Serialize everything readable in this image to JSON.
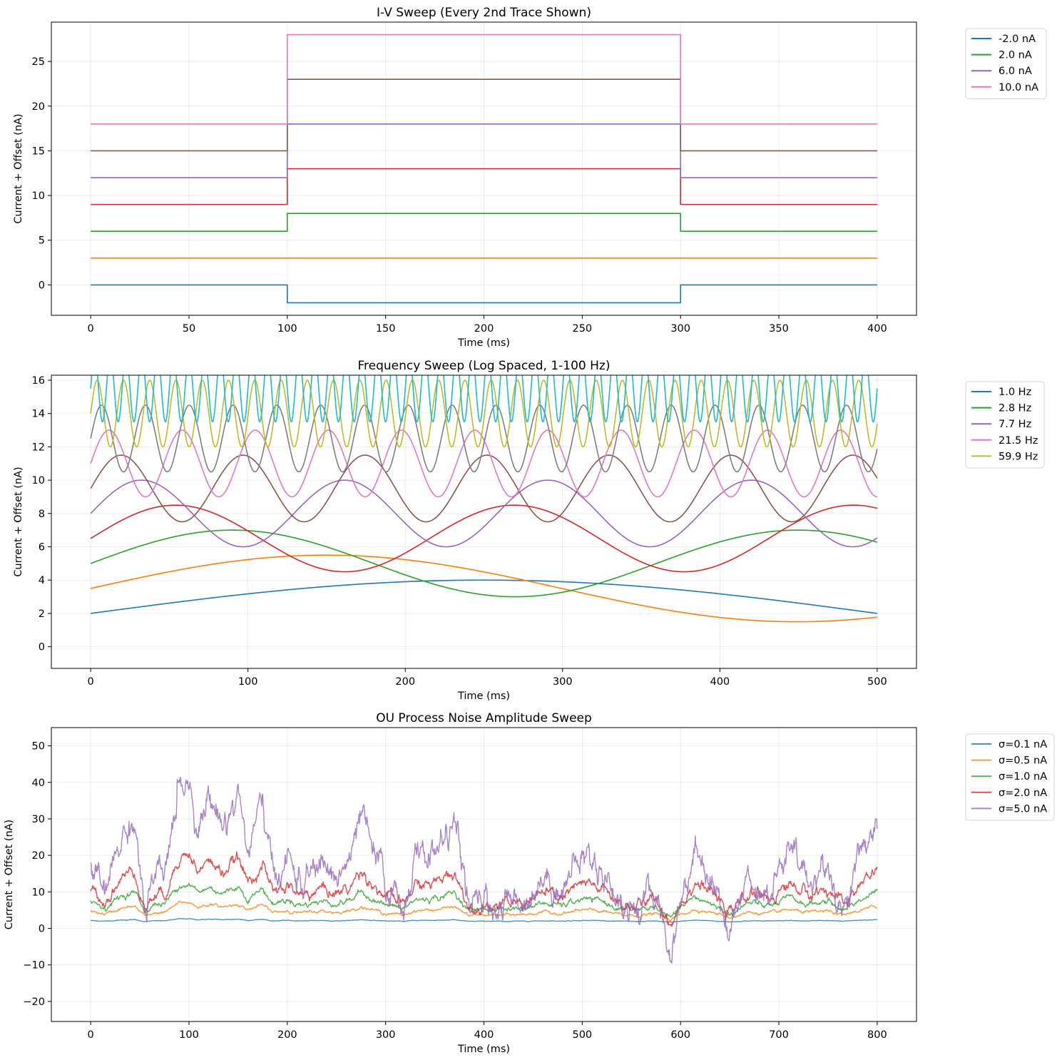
{
  "chart_data": [
    {
      "type": "line",
      "title": "I-V Sweep (Every 2nd Trace Shown)",
      "xlabel": "Time (ms)",
      "ylabel": "Current + Offset (nA)",
      "xlim": [
        -20,
        420
      ],
      "ylim": [
        -3.4,
        29.4
      ],
      "xticks": [
        0,
        50,
        100,
        150,
        200,
        250,
        300,
        350,
        400
      ],
      "yticks": [
        0,
        5,
        10,
        15,
        20,
        25
      ],
      "grid": true,
      "legend_position": "outside-top-right",
      "step": {
        "on": 100,
        "off": 300,
        "end": 400
      },
      "series": [
        {
          "name": "-2.0 nA",
          "baseline": 0,
          "during": -2,
          "color": "#1f77b4"
        },
        {
          "baseline": 3,
          "during": 3,
          "color": "#ff7f0e"
        },
        {
          "name": "2.0 nA",
          "baseline": 6,
          "during": 8,
          "color": "#2ca02c"
        },
        {
          "baseline": 9,
          "during": 13,
          "color": "#d62728"
        },
        {
          "name": "6.0 nA",
          "baseline": 12,
          "during": 18,
          "color": "#9467bd"
        },
        {
          "baseline": 15,
          "during": 23,
          "color": "#8c564b"
        },
        {
          "name": "10.0 nA",
          "baseline": 18,
          "during": 28,
          "color": "#e377c2"
        }
      ]
    },
    {
      "type": "line",
      "title": "Frequency Sweep (Log Spaced, 1-100 Hz)",
      "xlabel": "Time (ms)",
      "ylabel": "Current + Offset (nA)",
      "xlim": [
        -25,
        525
      ],
      "ylim": [
        -1.3,
        16.3
      ],
      "xticks": [
        0,
        100,
        200,
        300,
        400,
        500
      ],
      "yticks": [
        0,
        2,
        4,
        6,
        8,
        10,
        12,
        14,
        16
      ],
      "grid": true,
      "legend_position": "outside-top-right",
      "duration_ms": 500,
      "amplitude": 2,
      "series": [
        {
          "name": "1.0 Hz",
          "freq_hz": 1.0,
          "offset": 0,
          "color": "#1f77b4"
        },
        {
          "freq_hz": 1.67,
          "offset": 1.5,
          "color": "#ff7f0e"
        },
        {
          "name": "2.8 Hz",
          "freq_hz": 2.78,
          "offset": 3,
          "color": "#2ca02c"
        },
        {
          "freq_hz": 4.64,
          "offset": 4.5,
          "color": "#d62728"
        },
        {
          "name": "7.7 Hz",
          "freq_hz": 7.74,
          "offset": 6,
          "color": "#9467bd"
        },
        {
          "freq_hz": 12.9,
          "offset": 7.5,
          "color": "#8c564b"
        },
        {
          "name": "21.5 Hz",
          "freq_hz": 21.5,
          "offset": 9,
          "color": "#e377c2"
        },
        {
          "freq_hz": 35.9,
          "offset": 10.5,
          "color": "#7f7f7f"
        },
        {
          "name": "59.9 Hz",
          "freq_hz": 59.9,
          "offset": 12,
          "color": "#bcbd22"
        },
        {
          "freq_hz": 100,
          "offset": 13.5,
          "color": "#17becf"
        }
      ]
    },
    {
      "type": "line",
      "title": "OU Process Noise Amplitude Sweep",
      "xlabel": "Time (ms)",
      "ylabel": "Current + Offset (nA)",
      "xlim": [
        -40,
        840
      ],
      "ylim": [
        -25.5,
        55
      ],
      "xticks": [
        0,
        100,
        200,
        300,
        400,
        500,
        600,
        700,
        800
      ],
      "yticks": [
        -20,
        -10,
        0,
        10,
        20,
        30,
        40,
        50
      ],
      "ytick_labels": [
        "−20",
        "−10",
        "0",
        "10",
        "20",
        "30",
        "40",
        "50"
      ],
      "grid": true,
      "legend_position": "outside-top-right",
      "duration_ms": 800,
      "series": [
        {
          "name": "σ=0.1 nA",
          "sigma": 0.1,
          "offset": 2,
          "color": "#1f77b4"
        },
        {
          "name": "σ=0.5 nA",
          "sigma": 0.5,
          "offset": 4,
          "color": "#ff7f0e"
        },
        {
          "name": "σ=1.0 nA",
          "sigma": 1.0,
          "offset": 6,
          "color": "#2ca02c"
        },
        {
          "name": "σ=2.0 nA",
          "sigma": 2.0,
          "offset": 8,
          "color": "#d62728"
        },
        {
          "name": "σ=5.0 nA",
          "sigma": 5.0,
          "offset": 10,
          "color": "#9467bd"
        }
      ],
      "ou_anchor_x": [
        0,
        15,
        30,
        45,
        55,
        65,
        75,
        90,
        100,
        110,
        120,
        135,
        150,
        160,
        175,
        185,
        200,
        215,
        235,
        250,
        265,
        275,
        290,
        300,
        318,
        330,
        350,
        370,
        385,
        400,
        420,
        440,
        460,
        480,
        500,
        520,
        540,
        560,
        575,
        590,
        600,
        615,
        630,
        650,
        670,
        690,
        710,
        730,
        750,
        765,
        780,
        800
      ],
      "ou_anchor_z": [
        1.5,
        -0.3,
        2.8,
        4.0,
        -1.3,
        0.6,
        0.6,
        6.0,
        6.2,
        3.7,
        5.2,
        3.7,
        5.5,
        2.2,
        4.9,
        0.7,
        1.8,
        0.4,
        1.5,
        0.8,
        1.8,
        4.0,
        1.7,
        0.4,
        -0.8,
        1.8,
        2.2,
        3.8,
        -1.0,
        -0.6,
        -0.8,
        -0.4,
        0.8,
        0.2,
        2.0,
        1.4,
        -0.8,
        -0.9,
        0.0,
        -3.4,
        -0.4,
        2.4,
        1.0,
        -2.0,
        0.9,
        0.0,
        2.2,
        0.6,
        1.4,
        -1.0,
        1.6,
        4.0
      ]
    }
  ]
}
